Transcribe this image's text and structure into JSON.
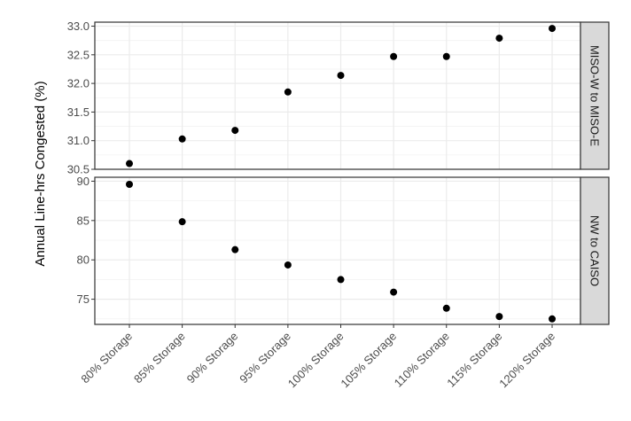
{
  "chart_data": {
    "type": "scatter",
    "ylabel": "Annual Line-hrs Congested (%)",
    "xlabel": "",
    "categories": [
      "80% Storage",
      "85% Storage",
      "90% Storage",
      "95% Storage",
      "100% Storage",
      "105% Storage",
      "110% Storage",
      "115% Storage",
      "120% Storage"
    ],
    "grid": true,
    "point_color": "#000000",
    "strip_color": "#d9d9d9",
    "facets": [
      {
        "label": "MISO-W to MISO-E",
        "ylim": [
          30.5,
          33.07
        ],
        "yticks": [
          30.5,
          31.0,
          31.5,
          32.0,
          32.5,
          33.0
        ],
        "ytick_labels": [
          "30.5",
          "31.0",
          "31.5",
          "32.0",
          "32.5",
          "33.0"
        ],
        "values": [
          30.6,
          31.03,
          31.18,
          31.85,
          32.14,
          32.47,
          32.47,
          32.79,
          32.96
        ]
      },
      {
        "label": "NW to CAISO",
        "ylim": [
          71.8,
          90.5
        ],
        "yticks": [
          75,
          80,
          85,
          90
        ],
        "ytick_labels": [
          "75",
          "80",
          "85",
          "90"
        ],
        "values": [
          89.6,
          84.85,
          81.3,
          79.35,
          77.5,
          75.9,
          73.85,
          72.8,
          72.5
        ]
      }
    ]
  }
}
